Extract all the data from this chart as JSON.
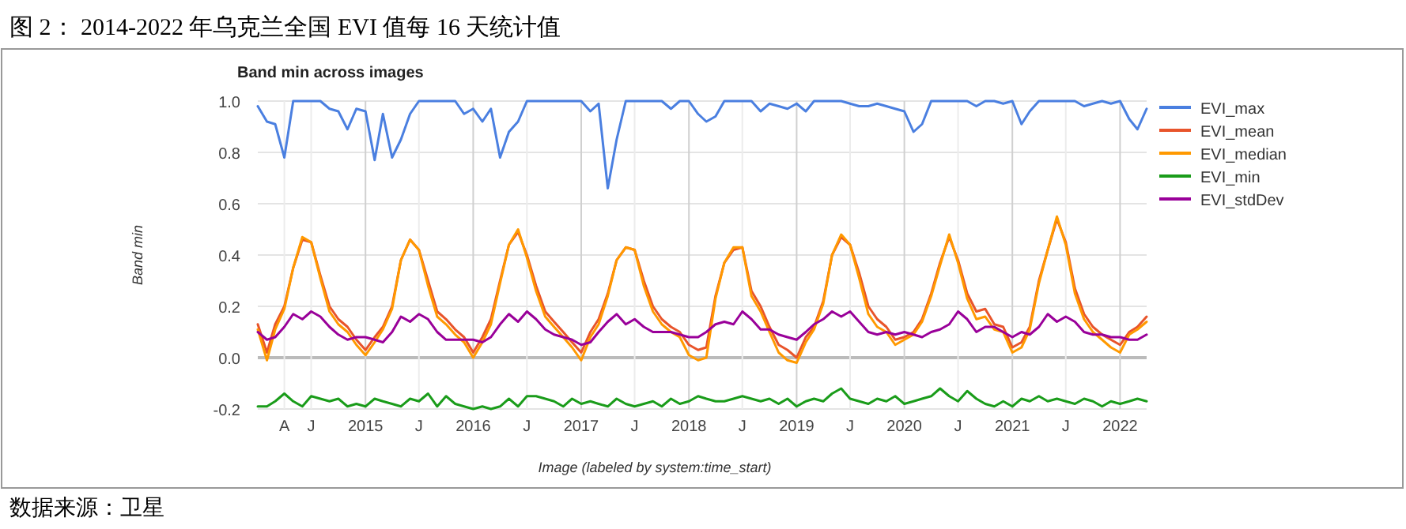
{
  "chart_data": {
    "type": "line",
    "title": "图 2：    2014-2022 年乌克兰全国 EVI 值每 16 天统计值",
    "subtitle": "Band min across images",
    "xlabel": "Image (labeled by system:time_start)",
    "ylabel": "Band min",
    "annotations": [
      "数据来源：卫星"
    ],
    "x": [
      "2014-01",
      "2014-02",
      "2014-03",
      "2014-04",
      "2014-05",
      "2014-06",
      "2014-07",
      "2014-08",
      "2014-09",
      "2014-10",
      "2014-11",
      "2014-12",
      "2015-01",
      "2015-02",
      "2015-03",
      "2015-04",
      "2015-05",
      "2015-06",
      "2015-07",
      "2015-08",
      "2015-09",
      "2015-10",
      "2015-11",
      "2015-12",
      "2016-01",
      "2016-02",
      "2016-03",
      "2016-04",
      "2016-05",
      "2016-06",
      "2016-07",
      "2016-08",
      "2016-09",
      "2016-10",
      "2016-11",
      "2016-12",
      "2017-01",
      "2017-02",
      "2017-03",
      "2017-04",
      "2017-05",
      "2017-06",
      "2017-07",
      "2017-08",
      "2017-09",
      "2017-10",
      "2017-11",
      "2017-12",
      "2018-01",
      "2018-02",
      "2018-03",
      "2018-04",
      "2018-05",
      "2018-06",
      "2018-07",
      "2018-08",
      "2018-09",
      "2018-10",
      "2018-11",
      "2018-12",
      "2019-01",
      "2019-02",
      "2019-03",
      "2019-04",
      "2019-05",
      "2019-06",
      "2019-07",
      "2019-08",
      "2019-09",
      "2019-10",
      "2019-11",
      "2019-12",
      "2020-01",
      "2020-02",
      "2020-03",
      "2020-04",
      "2020-05",
      "2020-06",
      "2020-07",
      "2020-08",
      "2020-09",
      "2020-10",
      "2020-11",
      "2020-12",
      "2021-01",
      "2021-02",
      "2021-03",
      "2021-04",
      "2021-05",
      "2021-06",
      "2021-07",
      "2021-08",
      "2021-09",
      "2021-10",
      "2021-11",
      "2021-12",
      "2022-01",
      "2022-02",
      "2022-03",
      "2022-04"
    ],
    "series": [
      {
        "name": "EVI_max",
        "color": "#4a7fe0",
        "values": [
          0.98,
          0.92,
          0.91,
          0.78,
          1,
          1,
          1,
          1,
          0.97,
          0.96,
          0.89,
          0.97,
          0.96,
          0.77,
          0.95,
          0.78,
          0.85,
          0.95,
          1,
          1,
          1,
          1,
          1,
          0.95,
          0.97,
          0.92,
          0.97,
          0.78,
          0.88,
          0.92,
          1,
          1,
          1,
          1,
          1,
          1,
          1,
          0.96,
          0.99,
          0.66,
          0.85,
          1,
          1,
          1,
          1,
          1,
          0.97,
          1,
          1,
          0.95,
          0.92,
          0.94,
          1,
          1,
          1,
          1,
          0.96,
          0.99,
          0.98,
          0.97,
          0.99,
          0.96,
          1,
          1,
          1,
          1,
          0.99,
          0.98,
          0.98,
          0.99,
          0.98,
          0.97,
          0.96,
          0.88,
          0.91,
          1,
          1,
          1,
          1,
          1,
          0.98,
          1,
          1,
          0.99,
          1,
          0.91,
          0.96,
          1,
          1,
          1,
          1,
          1,
          0.98,
          0.99,
          1,
          0.99,
          1,
          0.93,
          0.89,
          0.97
        ]
      },
      {
        "name": "EVI_mean",
        "color": "#e8542b",
        "values": [
          0.13,
          0.02,
          0.13,
          0.2,
          0.35,
          0.46,
          0.45,
          0.32,
          0.2,
          0.15,
          0.12,
          0.07,
          0.03,
          0.08,
          0.12,
          0.2,
          0.38,
          0.46,
          0.42,
          0.3,
          0.18,
          0.15,
          0.11,
          0.08,
          0.02,
          0.08,
          0.15,
          0.3,
          0.44,
          0.49,
          0.4,
          0.28,
          0.18,
          0.14,
          0.1,
          0.06,
          0.02,
          0.1,
          0.15,
          0.25,
          0.38,
          0.43,
          0.42,
          0.3,
          0.2,
          0.15,
          0.12,
          0.1,
          0.05,
          0.03,
          0.04,
          0.24,
          0.37,
          0.42,
          0.43,
          0.26,
          0.2,
          0.12,
          0.05,
          0.03,
          0.0,
          0.08,
          0.12,
          0.22,
          0.4,
          0.47,
          0.44,
          0.33,
          0.2,
          0.15,
          0.12,
          0.07,
          0.08,
          0.1,
          0.15,
          0.25,
          0.37,
          0.47,
          0.38,
          0.25,
          0.18,
          0.19,
          0.13,
          0.12,
          0.04,
          0.06,
          0.12,
          0.3,
          0.42,
          0.54,
          0.45,
          0.27,
          0.17,
          0.12,
          0.09,
          0.07,
          0.05,
          0.1,
          0.12,
          0.16
        ]
      },
      {
        "name": "EVI_median",
        "color": "#ff9900",
        "values": [
          0.11,
          -0.01,
          0.11,
          0.19,
          0.35,
          0.47,
          0.45,
          0.31,
          0.18,
          0.13,
          0.1,
          0.05,
          0.01,
          0.06,
          0.11,
          0.19,
          0.38,
          0.46,
          0.42,
          0.28,
          0.16,
          0.13,
          0.09,
          0.06,
          0.0,
          0.06,
          0.13,
          0.29,
          0.44,
          0.5,
          0.39,
          0.26,
          0.16,
          0.12,
          0.08,
          0.04,
          -0.01,
          0.08,
          0.13,
          0.24,
          0.38,
          0.43,
          0.42,
          0.28,
          0.18,
          0.13,
          0.1,
          0.08,
          0.01,
          -0.01,
          0.0,
          0.23,
          0.37,
          0.43,
          0.43,
          0.24,
          0.18,
          0.1,
          0.02,
          -0.01,
          -0.02,
          0.06,
          0.11,
          0.21,
          0.4,
          0.48,
          0.44,
          0.31,
          0.17,
          0.12,
          0.1,
          0.05,
          0.07,
          0.09,
          0.14,
          0.24,
          0.36,
          0.48,
          0.37,
          0.23,
          0.15,
          0.16,
          0.11,
          0.1,
          0.02,
          0.04,
          0.11,
          0.29,
          0.42,
          0.55,
          0.44,
          0.25,
          0.15,
          0.1,
          0.07,
          0.04,
          0.02,
          0.09,
          0.11,
          0.14
        ]
      },
      {
        "name": "EVI_min",
        "color": "#1a9c1a",
        "values": [
          -0.19,
          -0.19,
          -0.17,
          -0.14,
          -0.17,
          -0.19,
          -0.15,
          -0.16,
          -0.17,
          -0.16,
          -0.19,
          -0.18,
          -0.19,
          -0.16,
          -0.17,
          -0.18,
          -0.19,
          -0.16,
          -0.17,
          -0.14,
          -0.19,
          -0.15,
          -0.18,
          -0.19,
          -0.2,
          -0.19,
          -0.2,
          -0.19,
          -0.16,
          -0.19,
          -0.15,
          -0.15,
          -0.16,
          -0.17,
          -0.19,
          -0.16,
          -0.18,
          -0.17,
          -0.18,
          -0.19,
          -0.16,
          -0.18,
          -0.19,
          -0.18,
          -0.17,
          -0.19,
          -0.16,
          -0.18,
          -0.17,
          -0.15,
          -0.16,
          -0.17,
          -0.17,
          -0.16,
          -0.15,
          -0.16,
          -0.17,
          -0.16,
          -0.18,
          -0.16,
          -0.19,
          -0.17,
          -0.16,
          -0.17,
          -0.14,
          -0.12,
          -0.16,
          -0.17,
          -0.18,
          -0.16,
          -0.17,
          -0.15,
          -0.18,
          -0.17,
          -0.16,
          -0.15,
          -0.12,
          -0.15,
          -0.17,
          -0.13,
          -0.16,
          -0.18,
          -0.19,
          -0.17,
          -0.19,
          -0.16,
          -0.17,
          -0.15,
          -0.17,
          -0.16,
          -0.17,
          -0.18,
          -0.16,
          -0.17,
          -0.19,
          -0.17,
          -0.18,
          -0.17,
          -0.16,
          -0.17
        ]
      },
      {
        "name": "EVI_stdDev",
        "color": "#990099",
        "values": [
          0.1,
          0.07,
          0.08,
          0.12,
          0.17,
          0.15,
          0.18,
          0.16,
          0.12,
          0.09,
          0.07,
          0.08,
          0.08,
          0.07,
          0.06,
          0.1,
          0.16,
          0.14,
          0.17,
          0.15,
          0.1,
          0.07,
          0.07,
          0.07,
          0.07,
          0.06,
          0.08,
          0.13,
          0.17,
          0.14,
          0.18,
          0.15,
          0.11,
          0.09,
          0.08,
          0.07,
          0.05,
          0.06,
          0.1,
          0.14,
          0.17,
          0.13,
          0.15,
          0.12,
          0.1,
          0.1,
          0.1,
          0.09,
          0.08,
          0.08,
          0.1,
          0.13,
          0.14,
          0.13,
          0.18,
          0.15,
          0.11,
          0.11,
          0.09,
          0.08,
          0.07,
          0.1,
          0.13,
          0.15,
          0.18,
          0.16,
          0.18,
          0.14,
          0.1,
          0.09,
          0.1,
          0.09,
          0.1,
          0.09,
          0.08,
          0.1,
          0.11,
          0.13,
          0.18,
          0.15,
          0.1,
          0.12,
          0.12,
          0.1,
          0.08,
          0.1,
          0.09,
          0.12,
          0.17,
          0.14,
          0.16,
          0.14,
          0.1,
          0.09,
          0.09,
          0.08,
          0.08,
          0.07,
          0.07,
          0.09
        ]
      }
    ],
    "xlim": [
      "2014-01",
      "2022-04"
    ],
    "xticks": [
      {
        "value": "2014-04",
        "label": "A"
      },
      {
        "value": "2014-07",
        "label": "J"
      },
      {
        "value": "2015-01",
        "label": "2015"
      },
      {
        "value": "2015-07",
        "label": "J"
      },
      {
        "value": "2016-01",
        "label": "2016"
      },
      {
        "value": "2016-07",
        "label": "J"
      },
      {
        "value": "2017-01",
        "label": "2017"
      },
      {
        "value": "2017-07",
        "label": "J"
      },
      {
        "value": "2018-01",
        "label": "2018"
      },
      {
        "value": "2018-07",
        "label": "J"
      },
      {
        "value": "2019-01",
        "label": "2019"
      },
      {
        "value": "2019-07",
        "label": "J"
      },
      {
        "value": "2020-01",
        "label": "2020"
      },
      {
        "value": "2020-07",
        "label": "J"
      },
      {
        "value": "2021-01",
        "label": "2021"
      },
      {
        "value": "2021-07",
        "label": "J"
      },
      {
        "value": "2022-01",
        "label": "2022"
      }
    ],
    "ylim": [
      -0.2,
      1.0
    ],
    "yticks": [
      {
        "value": -0.2,
        "label": "-0.2"
      },
      {
        "value": 0,
        "label": "0.0"
      },
      {
        "value": 0.2,
        "label": "0.2"
      },
      {
        "value": 0.4,
        "label": "0.4"
      },
      {
        "value": 0.6,
        "label": "0.6"
      },
      {
        "value": 0.8,
        "label": "0.8"
      },
      {
        "value": 1.0,
        "label": "1.0"
      }
    ],
    "grid": true,
    "legend": "right"
  }
}
